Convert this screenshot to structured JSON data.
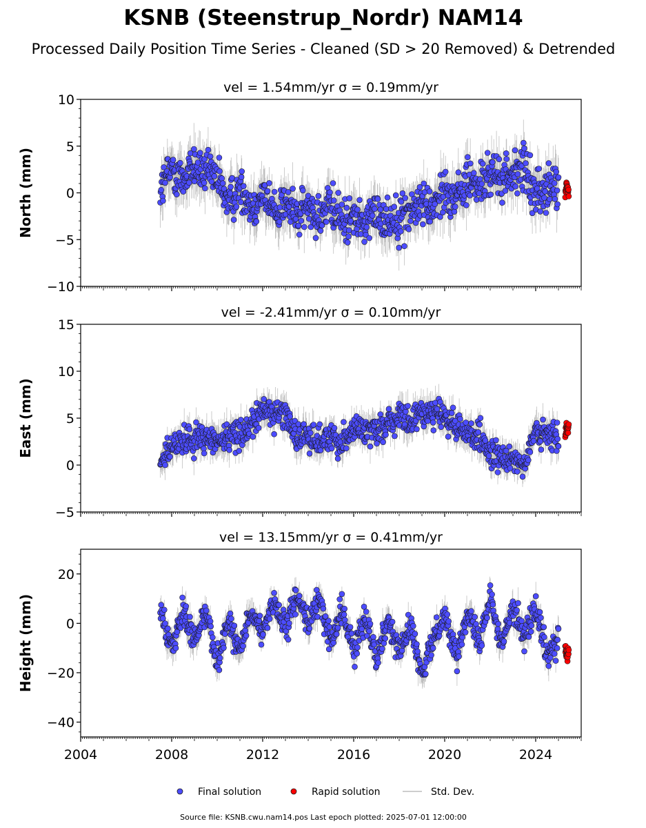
{
  "figure": {
    "title": "KSNB (Steenstrup_Nordr) NAM14",
    "subtitle": "Processed Daily Position Time Series - Cleaned (SD > 20 Removed) & Detrended",
    "footer": "Source file: KSNB.cwu.nam14.pos  Last epoch plotted: 2025-07-01 12:00:00"
  },
  "legend": {
    "final_label": "Final solution",
    "rapid_label": "Rapid solution",
    "std_label": "Std. Dev.",
    "placement": "bottom-center"
  },
  "colors": {
    "final": "#4c4cff",
    "rapid": "#ff0000",
    "std": "#bdbdbd",
    "point_edge": "#1a1a1a"
  },
  "chart_data": [
    {
      "type": "scatter",
      "title": "vel = 1.54mm/yr   σ = 0.19mm/yr",
      "ylabel": "North (mm)",
      "xlim": [
        2004,
        2026
      ],
      "ylim": [
        -10,
        10
      ],
      "yticks": [
        -10,
        -5,
        0,
        5,
        10
      ],
      "xticks": [
        2004,
        2008,
        2012,
        2016,
        2020,
        2024
      ],
      "show_xtick_labels": false,
      "series": [
        {
          "name": "Final solution",
          "x": [
            2007.5,
            2008.0,
            2008.5,
            2009.0,
            2009.5,
            2010.0,
            2010.5,
            2011.0,
            2011.5,
            2012.0,
            2012.5,
            2013.0,
            2013.5,
            2014.0,
            2014.5,
            2015.0,
            2015.5,
            2016.0,
            2016.5,
            2017.0,
            2017.5,
            2018.0,
            2018.5,
            2019.0,
            2019.5,
            2020.0,
            2020.5,
            2021.0,
            2021.5,
            2022.0,
            2022.5,
            2023.0,
            2023.5,
            2024.0,
            2024.5,
            2025.0
          ],
          "y": [
            0.5,
            2.5,
            1.5,
            3.0,
            2.0,
            1.5,
            -1.0,
            0.5,
            -1.5,
            0.0,
            -2.0,
            -1.0,
            -2.5,
            -1.5,
            -2.5,
            -1.5,
            -3.0,
            -2.5,
            -3.5,
            -2.0,
            -3.0,
            -2.5,
            -2.0,
            -1.0,
            -1.5,
            0.5,
            -0.5,
            1.5,
            0.5,
            2.0,
            1.5,
            2.0,
            2.5,
            0.0,
            0.5,
            0.5
          ],
          "spread": [
            3,
            3,
            3,
            3,
            3,
            3,
            3,
            3,
            3,
            3,
            3,
            3,
            3,
            3,
            3,
            3,
            3,
            3,
            3,
            3,
            3,
            3,
            3,
            3,
            3,
            3,
            3,
            3,
            3,
            3,
            3,
            3,
            3,
            3,
            3,
            3
          ]
        },
        {
          "name": "Rapid solution",
          "x": [
            2025.3,
            2025.35,
            2025.4,
            2025.45
          ],
          "y": [
            0.0,
            0.8,
            0.3,
            -0.2
          ],
          "spread": [
            0.8,
            0.8,
            0.8,
            0.8
          ]
        }
      ]
    },
    {
      "type": "scatter",
      "title": "vel = -2.41mm/yr   σ = 0.10mm/yr",
      "ylabel": "East (mm)",
      "xlim": [
        2004,
        2026
      ],
      "ylim": [
        -5,
        15
      ],
      "yticks": [
        -5,
        0,
        5,
        10,
        15
      ],
      "xticks": [
        2004,
        2008,
        2012,
        2016,
        2020,
        2024
      ],
      "show_xtick_labels": false,
      "series": [
        {
          "name": "Final solution",
          "x": [
            2007.5,
            2008.0,
            2008.5,
            2009.0,
            2009.5,
            2010.0,
            2010.5,
            2011.0,
            2011.5,
            2012.0,
            2012.5,
            2013.0,
            2013.5,
            2014.0,
            2014.5,
            2015.0,
            2015.5,
            2016.0,
            2016.5,
            2017.0,
            2017.5,
            2018.0,
            2018.5,
            2019.0,
            2019.5,
            2020.0,
            2020.5,
            2021.0,
            2021.5,
            2022.0,
            2022.5,
            2023.0,
            2023.5,
            2024.0,
            2024.5,
            2025.0
          ],
          "y": [
            0.0,
            2.0,
            2.5,
            3.0,
            3.0,
            2.5,
            3.0,
            3.5,
            4.0,
            6.0,
            5.5,
            5.5,
            3.0,
            3.0,
            2.5,
            3.0,
            2.5,
            4.0,
            3.5,
            4.0,
            4.5,
            5.0,
            4.5,
            5.5,
            6.0,
            5.0,
            4.0,
            3.5,
            3.0,
            1.0,
            0.5,
            1.0,
            0.0,
            3.5,
            3.0,
            3.0
          ],
          "spread": [
            2,
            2,
            2,
            2,
            2,
            2,
            2,
            2,
            2,
            2,
            2,
            2,
            2,
            2,
            2,
            2,
            2,
            2,
            2,
            2,
            2,
            2,
            2,
            2,
            2,
            2,
            2,
            2,
            2,
            2,
            2,
            2,
            2,
            2,
            2,
            2
          ]
        },
        {
          "name": "Rapid solution",
          "x": [
            2025.3,
            2025.35,
            2025.4,
            2025.45
          ],
          "y": [
            3.0,
            4.0,
            3.5,
            4.5
          ],
          "spread": [
            1,
            1,
            1,
            1
          ]
        }
      ]
    },
    {
      "type": "scatter",
      "title": "vel = 13.15mm/yr   σ = 0.41mm/yr",
      "ylabel": "Height (mm)",
      "xlim": [
        2004,
        2026
      ],
      "ylim": [
        -46,
        30
      ],
      "yticks": [
        -40,
        -20,
        0,
        20
      ],
      "xticks": [
        2004,
        2008,
        2012,
        2016,
        2020,
        2024
      ],
      "show_xtick_labels": true,
      "series": [
        {
          "name": "Final solution",
          "x": [
            2007.5,
            2008.0,
            2008.5,
            2009.0,
            2009.5,
            2010.0,
            2010.5,
            2011.0,
            2011.5,
            2012.0,
            2012.5,
            2013.0,
            2013.5,
            2014.0,
            2014.5,
            2015.0,
            2015.5,
            2016.0,
            2016.5,
            2017.0,
            2017.5,
            2018.0,
            2018.5,
            2019.0,
            2019.5,
            2020.0,
            2020.5,
            2021.0,
            2021.5,
            2022.0,
            2022.5,
            2023.0,
            2023.5,
            2024.0,
            2024.5,
            2025.0
          ],
          "y": [
            8.0,
            -10.0,
            5.0,
            -8.0,
            6.0,
            -16.0,
            2.0,
            -12.0,
            4.0,
            -4.0,
            10.0,
            -4.0,
            12.0,
            0.0,
            10.0,
            -8.0,
            6.0,
            -12.0,
            4.0,
            -14.0,
            2.0,
            -12.0,
            0.0,
            -22.0,
            -6.0,
            4.0,
            -14.0,
            6.0,
            -8.0,
            12.0,
            -10.0,
            8.0,
            -6.0,
            6.0,
            -14.0,
            -6.0
          ],
          "spread": [
            7,
            7,
            7,
            7,
            7,
            7,
            7,
            7,
            7,
            7,
            7,
            7,
            7,
            7,
            7,
            7,
            7,
            7,
            7,
            7,
            7,
            7,
            7,
            7,
            7,
            7,
            7,
            7,
            7,
            7,
            7,
            7,
            7,
            7,
            7,
            7
          ]
        },
        {
          "name": "Rapid solution",
          "x": [
            2025.3,
            2025.35,
            2025.4,
            2025.45
          ],
          "y": [
            -10.0,
            -12.0,
            -14.0,
            -11.0
          ],
          "spread": [
            2.5,
            2.5,
            2.5,
            2.5
          ]
        }
      ]
    }
  ]
}
